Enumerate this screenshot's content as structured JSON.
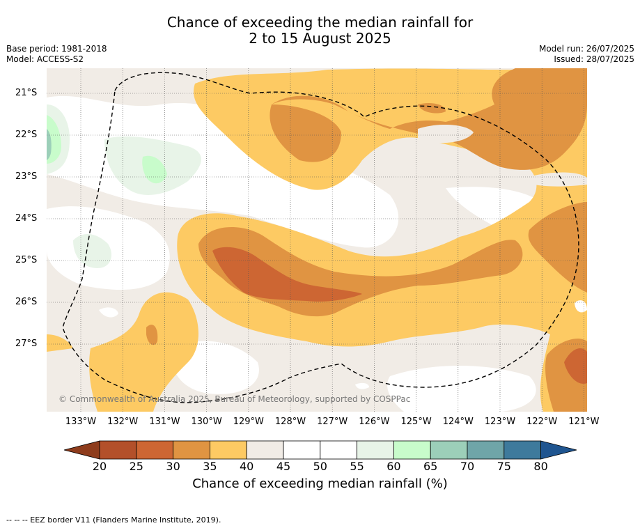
{
  "title": {
    "line1": "Chance of exceeding the median rainfall for",
    "line2": "2 to 15 August 2025"
  },
  "meta": {
    "base_period": "Base period: 1981-2018",
    "model": "Model: ACCESS-S2",
    "model_run": "Model run: 26/07/2025",
    "issued": "Issued: 28/07/2025"
  },
  "map": {
    "lat_labels": [
      "21°S",
      "22°S",
      "23°S",
      "24°S",
      "25°S",
      "26°S",
      "27°S"
    ],
    "lon_labels": [
      "133°W",
      "132°W",
      "131°W",
      "130°W",
      "129°W",
      "128°W",
      "127°W",
      "126°W",
      "125°W",
      "124°W",
      "123°W",
      "122°W",
      "121°W"
    ],
    "copyright": "© Commonwealth of Australia 2025, Bureau of Meteorology, supported by COSPPac"
  },
  "colorbar": {
    "ticks": [
      "20",
      "25",
      "30",
      "35",
      "40",
      "45",
      "50",
      "55",
      "60",
      "65",
      "70",
      "75",
      "80"
    ],
    "colors": [
      "#8e3c1c",
      "#b3502a",
      "#cd6633",
      "#e09442",
      "#fdca63",
      "#f1ece6",
      "#ffffff",
      "#ffffff",
      "#e8f4e8",
      "#c8fccb",
      "#9ccfb9",
      "#6fa5a8",
      "#3e7a9c",
      "#1f5590"
    ],
    "label": "Chance of exceeding median rainfall (%)"
  },
  "footer": "--  --  -- EEZ border V11 (Flanders Marine Institute, 2019)."
}
